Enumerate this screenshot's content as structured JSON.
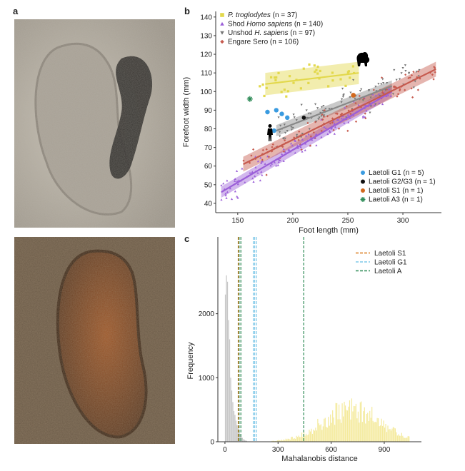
{
  "panels": {
    "a": "a",
    "b": "b",
    "c": "c"
  },
  "photo_colors": {
    "top_base": "#b9b2a5",
    "top_shadow": "#2c2a27",
    "bottom_base": "#6b5b48",
    "bottom_print": "#8a4a22"
  },
  "chart_data": [
    {
      "type": "scatter",
      "xlabel": "Foot length (mm)",
      "ylabel": "Forefoot width (mm)",
      "xlim": [
        130,
        335
      ],
      "ylim": [
        35,
        143
      ],
      "xticks": [
        150,
        200,
        250,
        300
      ],
      "yticks": [
        40,
        50,
        60,
        70,
        80,
        90,
        100,
        110,
        120,
        130,
        140
      ],
      "grid": false,
      "legend_top": [
        {
          "pre": "",
          "it": "P. troglodytes",
          "post": " (n = 37)",
          "color": "#e2d84c",
          "marker": "square"
        },
        {
          "pre": "Shod ",
          "it": "Homo sapiens",
          "post": " (n = 140)",
          "color": "#9b5fd8",
          "marker": "triangle"
        },
        {
          "pre": "Unshod ",
          "it": "H. sapiens",
          "post": " (n = 97)",
          "color": "#777777",
          "marker": "triangle-down"
        },
        {
          "pre": "Engare Sero",
          "it": "",
          "post": " (n = 106)",
          "color": "#c65a4e",
          "marker": "diamond"
        }
      ],
      "legend_bottom": [
        {
          "label": "Laetoli G1 (n = 5)",
          "color": "#3a9be0",
          "marker": "circle"
        },
        {
          "label": "Laetoli G2/G3 (n = 1)",
          "color": "#111111",
          "marker": "circle"
        },
        {
          "label": "Laetoli S1 (n = 1)",
          "color": "#d2691e",
          "marker": "circle"
        },
        {
          "label": "Laetoli A3 (n = 1)",
          "color": "#2e8b57",
          "marker": "asterisk"
        }
      ],
      "regressions": [
        {
          "name": "P. troglodytes",
          "color": "#e2d84c",
          "x": [
            175,
            260
          ],
          "y": [
            104,
            110
          ],
          "ci": 6
        },
        {
          "name": "Shod Homo sapiens",
          "color": "#9b5fd8",
          "x": [
            135,
            290
          ],
          "y": [
            46,
            100
          ],
          "ci": 3
        },
        {
          "name": "Unshod H. sapiens",
          "color": "#888888",
          "x": [
            185,
            290
          ],
          "y": [
            79,
            103
          ],
          "ci": 3
        },
        {
          "name": "Engare Sero",
          "color": "#c65a4e",
          "x": [
            155,
            330
          ],
          "y": [
            61,
            112
          ],
          "ci": 4
        }
      ],
      "laetoli_points": {
        "g1": [
          [
            177,
            89
          ],
          [
            185,
            90
          ],
          [
            190,
            88
          ],
          [
            195,
            86
          ],
          [
            183,
            79
          ]
        ],
        "g2g3": [
          [
            210,
            86
          ]
        ],
        "s1": [
          [
            255,
            98
          ]
        ],
        "a3": [
          [
            161,
            96
          ]
        ]
      },
      "scatter_groups": [
        {
          "name": "P. troglodytes",
          "color": "#e2d84c",
          "n": 37,
          "x_range": [
            170,
            260
          ],
          "center": [
            107,
            0.05
          ],
          "spread": 8
        },
        {
          "name": "Shod Homo sapiens",
          "color": "#9b5fd8",
          "n": 140,
          "x_range": [
            135,
            290
          ],
          "line": [
            46,
            100
          ],
          "spread": 6
        },
        {
          "name": "Unshod H. sapiens",
          "color": "#777777",
          "n": 97,
          "x_range": [
            185,
            320
          ],
          "line": [
            79,
            110
          ],
          "spread": 8
        },
        {
          "name": "Engare Sero",
          "color": "#c65a4e",
          "n": 106,
          "x_range": [
            155,
            330
          ],
          "line": [
            61,
            112
          ],
          "spread": 8
        }
      ]
    },
    {
      "type": "bar",
      "xlabel": "Mahalanobis distance",
      "ylabel": "Frequency",
      "xlim": [
        -40,
        1110
      ],
      "ylim": [
        0,
        3200
      ],
      "xticks": [
        0,
        300,
        600,
        900
      ],
      "yticks": [
        0,
        1000,
        2000
      ],
      "legend": [
        {
          "label": "Laetoli S1",
          "color": "#d97a1a"
        },
        {
          "label": "Laetoli G1",
          "color": "#7fc8e8"
        },
        {
          "label": "Laetoli A",
          "color": "#2e8b57"
        }
      ],
      "vlines": [
        {
          "x": 75,
          "color": "#d97a1a"
        },
        {
          "x": 80,
          "color": "#2e8b57"
        },
        {
          "x": 90,
          "color": "#2e8b57"
        },
        {
          "x": 160,
          "color": "#7fc8e8"
        },
        {
          "x": 168,
          "color": "#7fc8e8"
        },
        {
          "x": 178,
          "color": "#7fc8e8"
        },
        {
          "x": 445,
          "color": "#2e8b57"
        }
      ],
      "hist_grey": {
        "color": "#c8c8c8",
        "bin_start": 0,
        "bin_width": 6,
        "values": [
          2300,
          2600,
          2500,
          1900,
          1600,
          1000,
          800,
          620,
          480,
          420,
          330,
          260,
          210,
          160,
          120,
          80,
          60,
          40,
          30,
          20,
          15
        ]
      },
      "hist_yellow": {
        "color": "#f4ea9c",
        "bin_start": 210,
        "bin_width": 6,
        "peak": 710,
        "sd": 160,
        "max": 560
      }
    }
  ]
}
